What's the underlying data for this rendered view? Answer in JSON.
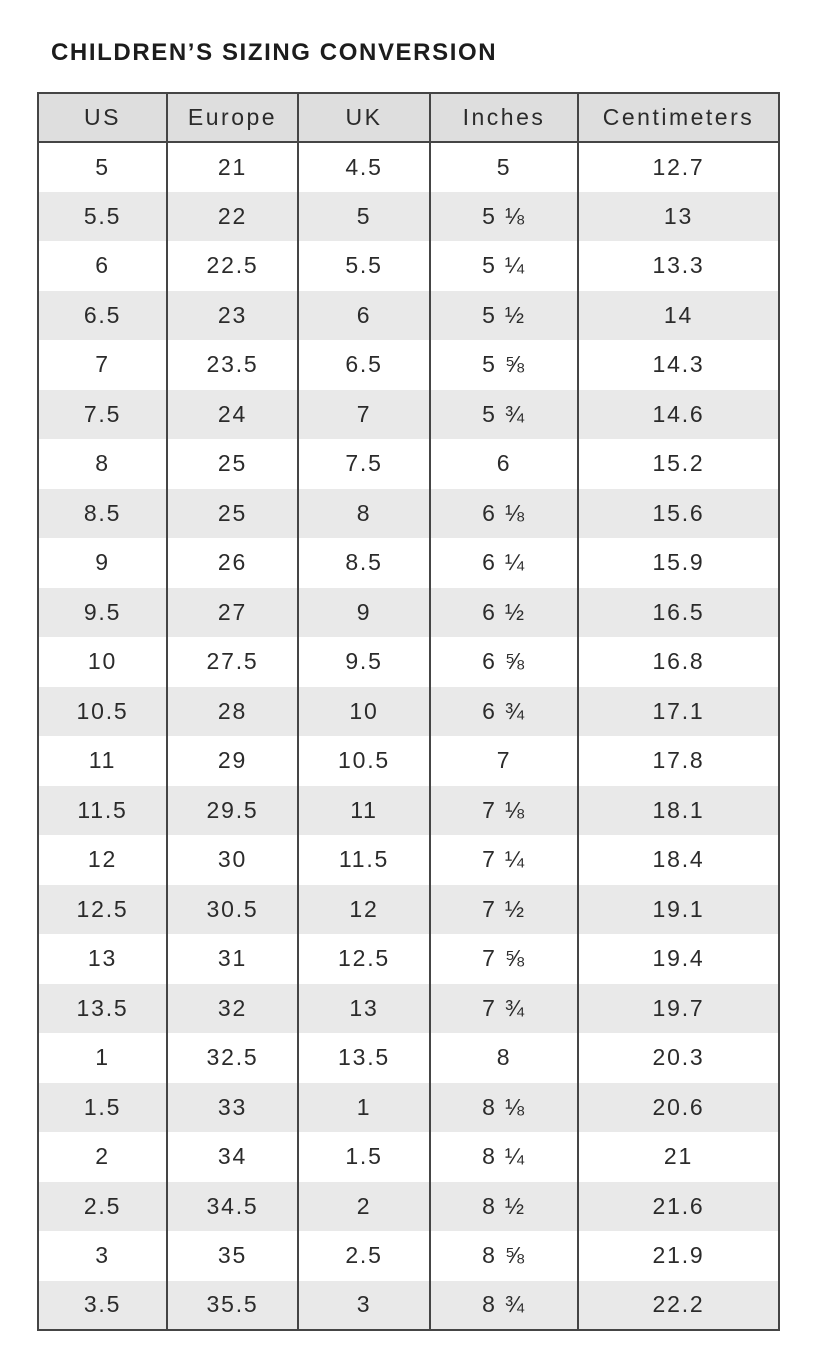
{
  "page": {
    "title": "CHILDREN’S SIZING CONVERSION"
  },
  "table": {
    "columns": [
      "US",
      "Europe",
      "UK",
      "Inches",
      "Centimeters"
    ],
    "column_keys": [
      "us",
      "europe",
      "uk",
      "inches",
      "centimeters"
    ],
    "rows": [
      [
        "5",
        "21",
        "4.5",
        "5",
        "12.7"
      ],
      [
        "5.5",
        "22",
        "5",
        "5 ⅛",
        "13"
      ],
      [
        "6",
        "22.5",
        "5.5",
        "5 ¼",
        "13.3"
      ],
      [
        "6.5",
        "23",
        "6",
        "5 ½",
        "14"
      ],
      [
        "7",
        "23.5",
        "6.5",
        "5 ⅝",
        "14.3"
      ],
      [
        "7.5",
        "24",
        "7",
        "5 ¾",
        "14.6"
      ],
      [
        "8",
        "25",
        "7.5",
        "6",
        "15.2"
      ],
      [
        "8.5",
        "25",
        "8",
        "6 ⅛",
        "15.6"
      ],
      [
        "9",
        "26",
        "8.5",
        "6 ¼",
        "15.9"
      ],
      [
        "9.5",
        "27",
        "9",
        "6 ½",
        "16.5"
      ],
      [
        "10",
        "27.5",
        "9.5",
        "6 ⅝",
        "16.8"
      ],
      [
        "10.5",
        "28",
        "10",
        "6 ¾",
        "17.1"
      ],
      [
        "11",
        "29",
        "10.5",
        "7",
        "17.8"
      ],
      [
        "11.5",
        "29.5",
        "11",
        "7 ⅛",
        "18.1"
      ],
      [
        "12",
        "30",
        "11.5",
        "7 ¼",
        "18.4"
      ],
      [
        "12.5",
        "30.5",
        "12",
        "7 ½",
        "19.1"
      ],
      [
        "13",
        "31",
        "12.5",
        "7 ⅝",
        "19.4"
      ],
      [
        "13.5",
        "32",
        "13",
        "7 ¾",
        "19.7"
      ],
      [
        "1",
        "32.5",
        "13.5",
        "8",
        "20.3"
      ],
      [
        "1.5",
        "33",
        "1",
        "8 ⅛",
        "20.6"
      ],
      [
        "2",
        "34",
        "1.5",
        "8 ¼",
        "21"
      ],
      [
        "2.5",
        "34.5",
        "2",
        "8 ½",
        "21.6"
      ],
      [
        "3",
        "35",
        "2.5",
        "8 ⅝",
        "21.9"
      ],
      [
        "3.5",
        "35.5",
        "3",
        "8 ¾",
        "22.2"
      ]
    ]
  },
  "colors": {
    "title_text": "#1c1c1c",
    "cell_text": "#2b2b2b",
    "header_bg": "#dedede",
    "stripe_bg": "#e9e9e9",
    "row_bg": "#ffffff",
    "table_border": "#454545",
    "page_bg": "#ffffff"
  }
}
